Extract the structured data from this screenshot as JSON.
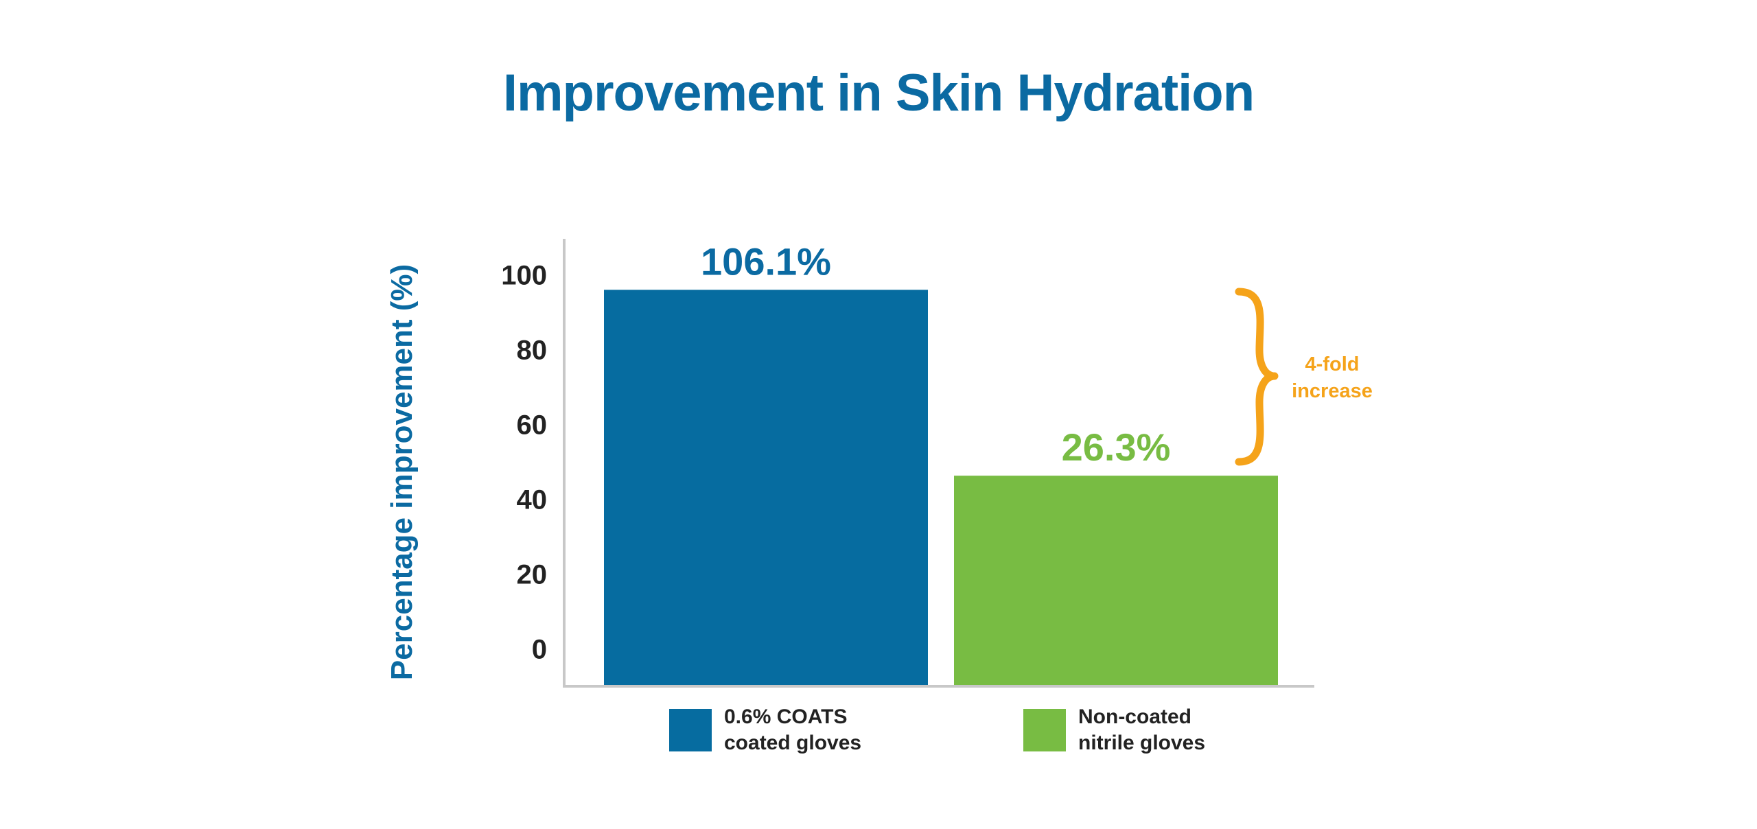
{
  "chart_data": {
    "type": "bar",
    "title": "Improvement in Skin Hydration",
    "xlabel": "",
    "ylabel": "Percentage improvement (%)",
    "ylim": [
      -10,
      110
    ],
    "yticks": [
      0,
      20,
      40,
      60,
      80,
      100
    ],
    "grid": false,
    "categories": [
      "0.6% COATS coated gloves",
      "Non-coated nitrile gloves"
    ],
    "series": [
      {
        "values": [
          106.1,
          26.3
        ],
        "data_labels": [
          "106.1%",
          "26.3%"
        ]
      }
    ],
    "colors": [
      "#066ca0",
      "#78bc43"
    ],
    "legend": {
      "placement": "bottom",
      "entries": [
        {
          "line1": "0.6% COATS",
          "line2": "coated gloves",
          "color": "#066ca0"
        },
        {
          "line1": "Non-coated",
          "line2": "nitrile gloves",
          "color": "#78bc43"
        }
      ]
    },
    "annotation": {
      "line1": "4-fold",
      "line2": "increase",
      "color": "#f5a31a"
    }
  }
}
